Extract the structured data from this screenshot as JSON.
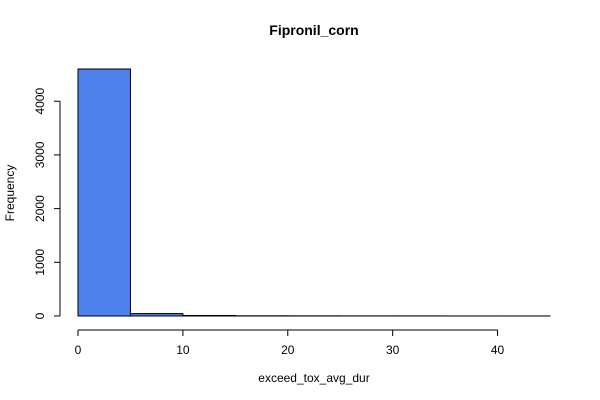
{
  "chart_data": {
    "type": "bar",
    "title": "Fipronil_corn",
    "xlabel": "exceed_tox_avg_dur",
    "ylabel": "Frequency",
    "xlim": [
      0,
      45
    ],
    "ylim": [
      0,
      4600
    ],
    "bin_edges": [
      0,
      5,
      10,
      15,
      20,
      25,
      30,
      35,
      40,
      45
    ],
    "values": [
      4600,
      45,
      10,
      4,
      3,
      2,
      2,
      1,
      1
    ],
    "x_ticks": [
      0,
      10,
      20,
      30,
      40
    ],
    "y_ticks": [
      0,
      1000,
      2000,
      3000,
      4000
    ],
    "bar_color": "#4f81ec",
    "grid": false,
    "legend": "none"
  }
}
